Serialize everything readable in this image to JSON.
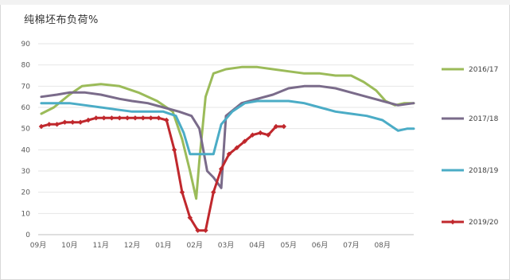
{
  "chart_data": {
    "type": "line",
    "title": "纯棉坯布负荷%",
    "xlabel": "",
    "ylabel": "",
    "ylim": [
      0,
      90
    ],
    "yticks": [
      0,
      10,
      20,
      30,
      40,
      50,
      60,
      70,
      80,
      90
    ],
    "xlim": [
      0,
      12
    ],
    "xticks": [
      {
        "label": "09月",
        "x": 0
      },
      {
        "label": "10月",
        "x": 1
      },
      {
        "label": "11月",
        "x": 2
      },
      {
        "label": "12月",
        "x": 3
      },
      {
        "label": "01月",
        "x": 4
      },
      {
        "label": "02月",
        "x": 5
      },
      {
        "label": "03月",
        "x": 6
      },
      {
        "label": "04月",
        "x": 7
      },
      {
        "label": "05月",
        "x": 8
      },
      {
        "label": "06月",
        "x": 9
      },
      {
        "label": "07月",
        "x": 10
      },
      {
        "label": "08月",
        "x": 11
      }
    ],
    "grid": "horizontal",
    "legend_position": "right",
    "series": [
      {
        "name": "2016/17",
        "color": "#9bbb59",
        "markers": false,
        "points": [
          [
            0.1,
            57
          ],
          [
            0.5,
            60
          ],
          [
            1.0,
            66
          ],
          [
            1.4,
            70
          ],
          [
            2.0,
            71
          ],
          [
            2.6,
            70
          ],
          [
            3.2,
            67
          ],
          [
            3.8,
            63
          ],
          [
            4.3,
            58
          ],
          [
            4.6,
            45
          ],
          [
            4.85,
            30
          ],
          [
            5.05,
            17
          ],
          [
            5.15,
            35
          ],
          [
            5.35,
            65
          ],
          [
            5.6,
            76
          ],
          [
            6.0,
            78
          ],
          [
            6.5,
            79
          ],
          [
            7.0,
            79
          ],
          [
            7.5,
            78
          ],
          [
            8.0,
            77
          ],
          [
            8.5,
            76
          ],
          [
            9.0,
            76
          ],
          [
            9.5,
            75
          ],
          [
            10.0,
            75
          ],
          [
            10.4,
            72
          ],
          [
            10.8,
            68
          ],
          [
            11.1,
            63
          ],
          [
            11.4,
            61
          ],
          [
            11.7,
            62
          ],
          [
            12.0,
            62
          ]
        ]
      },
      {
        "name": "2017/18",
        "color": "#7a6b8a",
        "markers": false,
        "points": [
          [
            0.1,
            65
          ],
          [
            0.6,
            66
          ],
          [
            1.0,
            67
          ],
          [
            1.5,
            67
          ],
          [
            2.0,
            66
          ],
          [
            2.6,
            64
          ],
          [
            3.0,
            63
          ],
          [
            3.5,
            62
          ],
          [
            4.0,
            60
          ],
          [
            4.5,
            58
          ],
          [
            4.9,
            56
          ],
          [
            5.15,
            50
          ],
          [
            5.4,
            30
          ],
          [
            5.6,
            27
          ],
          [
            5.85,
            22
          ],
          [
            6.0,
            56
          ],
          [
            6.5,
            62
          ],
          [
            7.0,
            64
          ],
          [
            7.5,
            66
          ],
          [
            8.0,
            69
          ],
          [
            8.5,
            70
          ],
          [
            9.0,
            70
          ],
          [
            9.5,
            69
          ],
          [
            10.0,
            67
          ],
          [
            10.5,
            65
          ],
          [
            11.0,
            63
          ],
          [
            11.5,
            61
          ],
          [
            12.0,
            62
          ]
        ]
      },
      {
        "name": "2018/19",
        "color": "#4bacc6",
        "markers": false,
        "points": [
          [
            0.1,
            62
          ],
          [
            0.5,
            62
          ],
          [
            1.0,
            62
          ],
          [
            1.5,
            61
          ],
          [
            2.0,
            60
          ],
          [
            2.5,
            59
          ],
          [
            3.0,
            58
          ],
          [
            3.5,
            58
          ],
          [
            4.0,
            58
          ],
          [
            4.4,
            56
          ],
          [
            4.65,
            48
          ],
          [
            4.85,
            38
          ],
          [
            5.2,
            38
          ],
          [
            5.6,
            38
          ],
          [
            5.85,
            52
          ],
          [
            6.2,
            58
          ],
          [
            6.6,
            62
          ],
          [
            7.0,
            63
          ],
          [
            7.5,
            63
          ],
          [
            8.0,
            63
          ],
          [
            8.5,
            62
          ],
          [
            9.0,
            60
          ],
          [
            9.5,
            58
          ],
          [
            10.0,
            57
          ],
          [
            10.5,
            56
          ],
          [
            11.0,
            54
          ],
          [
            11.3,
            51
          ],
          [
            11.5,
            49
          ],
          [
            11.8,
            50
          ],
          [
            12.0,
            50
          ]
        ]
      },
      {
        "name": "2019/20",
        "color": "#c0282d",
        "markers": true,
        "points": [
          [
            0.1,
            51
          ],
          [
            0.35,
            52
          ],
          [
            0.6,
            52
          ],
          [
            0.85,
            53
          ],
          [
            1.1,
            53
          ],
          [
            1.35,
            53
          ],
          [
            1.6,
            54
          ],
          [
            1.85,
            55
          ],
          [
            2.1,
            55
          ],
          [
            2.35,
            55
          ],
          [
            2.6,
            55
          ],
          [
            2.85,
            55
          ],
          [
            3.1,
            55
          ],
          [
            3.35,
            55
          ],
          [
            3.6,
            55
          ],
          [
            3.85,
            55
          ],
          [
            4.1,
            54
          ],
          [
            4.35,
            40
          ],
          [
            4.6,
            20
          ],
          [
            4.85,
            8
          ],
          [
            5.1,
            2
          ],
          [
            5.35,
            2
          ],
          [
            5.6,
            20
          ],
          [
            5.85,
            31
          ],
          [
            6.1,
            38
          ],
          [
            6.35,
            41
          ],
          [
            6.6,
            44
          ],
          [
            6.85,
            47
          ],
          [
            7.1,
            48
          ],
          [
            7.35,
            47
          ],
          [
            7.6,
            51
          ],
          [
            7.85,
            51
          ]
        ]
      }
    ]
  }
}
